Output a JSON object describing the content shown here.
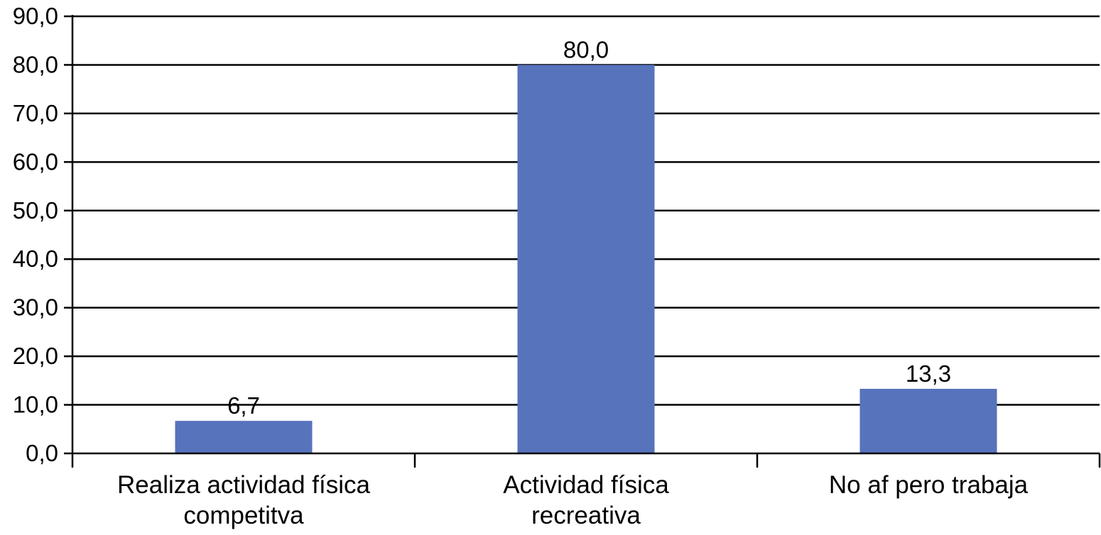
{
  "chart_data": {
    "type": "bar",
    "categories": [
      [
        "Realiza actividad física",
        "competitva"
      ],
      [
        "Actividad física",
        "recreativa"
      ],
      [
        "No af pero trabaja"
      ]
    ],
    "values": [
      6.7,
      80.0,
      13.3
    ],
    "data_labels": [
      "6,7",
      "80,0",
      "13,3"
    ],
    "yticks": [
      "0,0",
      "10,0",
      "20,0",
      "30,0",
      "40,0",
      "50,0",
      "60,0",
      "70,0",
      "80,0",
      "90,0"
    ],
    "ylim": [
      0,
      90
    ],
    "grid": true,
    "legend": "none",
    "bar_color": "#5773bc",
    "title": "",
    "xlabel": "",
    "ylabel": ""
  }
}
